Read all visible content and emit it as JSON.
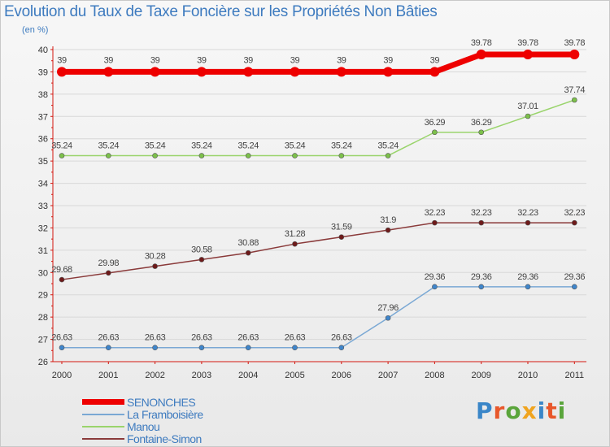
{
  "title": "Evolution du Taux de Taxe Foncière sur les Propriétés Non Bâties",
  "unit_label": "(en %)",
  "logo": {
    "text": "Proxiti",
    "letter_colors": [
      "#3a86c8",
      "#e8572a",
      "#5aa53b",
      "#f0a41f",
      "#3a86c8",
      "#e8572a",
      "#5aa53b"
    ]
  },
  "colors": {
    "axis": "#d4170f",
    "grid": "#d8d8d8",
    "tick_text": "#333333",
    "value_text": "#444444"
  },
  "chart_data": {
    "type": "line",
    "title": "Evolution du Taux de Taxe Foncière sur les Propriétés Non Bâties",
    "ylabel": "(en %)",
    "xlabel": "",
    "categories": [
      "2000",
      "2001",
      "2002",
      "2003",
      "2004",
      "2005",
      "2006",
      "2007",
      "2008",
      "2009",
      "2010",
      "2011"
    ],
    "ylim": [
      26,
      40
    ],
    "yticks": [
      "26",
      "27",
      "28",
      "29",
      "30",
      "31",
      "32",
      "33",
      "34",
      "35",
      "36",
      "37",
      "38",
      "39",
      "40"
    ],
    "grid": "horizontal",
    "legend_position": "bottom-left",
    "series": [
      {
        "name": "SENONCHES",
        "color": "#ee0000",
        "marker_color": "#ee0000",
        "emphasis": true,
        "values": [
          39,
          39,
          39,
          39,
          39,
          39,
          39,
          39,
          39,
          39.78,
          39.78,
          39.78
        ],
        "labels": [
          "39",
          "39",
          "39",
          "39",
          "39",
          "39",
          "39",
          "39",
          "39",
          "39.78",
          "39.78",
          "39.78"
        ]
      },
      {
        "name": "La Framboisière",
        "color": "#7aa8d4",
        "marker_color": "#3f86cc",
        "emphasis": false,
        "values": [
          26.63,
          26.63,
          26.63,
          26.63,
          26.63,
          26.63,
          26.63,
          27.96,
          29.36,
          29.36,
          29.36,
          29.36
        ],
        "labels": [
          "26.63",
          "26.63",
          "26.63",
          "26.63",
          "26.63",
          "26.63",
          "26.63",
          "27.96",
          "29.36",
          "29.36",
          "29.36",
          "29.36"
        ]
      },
      {
        "name": "Manou",
        "color": "#9ad46c",
        "marker_color": "#7cc04a",
        "emphasis": false,
        "values": [
          35.24,
          35.24,
          35.24,
          35.24,
          35.24,
          35.24,
          35.24,
          35.24,
          36.29,
          36.29,
          37.01,
          37.74
        ],
        "labels": [
          "35.24",
          "35.24",
          "35.24",
          "35.24",
          "35.24",
          "35.24",
          "35.24",
          "35.24",
          "36.29",
          "36.29",
          "37.01",
          "37.74"
        ]
      },
      {
        "name": "Fontaine-Simon",
        "color": "#8a3a3a",
        "marker_color": "#6e1a1a",
        "emphasis": false,
        "values": [
          29.68,
          29.98,
          30.28,
          30.58,
          30.88,
          31.28,
          31.59,
          31.9,
          32.23,
          32.23,
          32.23,
          32.23
        ],
        "labels": [
          "29.68",
          "29.98",
          "30.28",
          "30.58",
          "30.88",
          "31.28",
          "31.59",
          "31.9",
          "32.23",
          "32.23",
          "32.23",
          "32.23"
        ]
      }
    ]
  }
}
